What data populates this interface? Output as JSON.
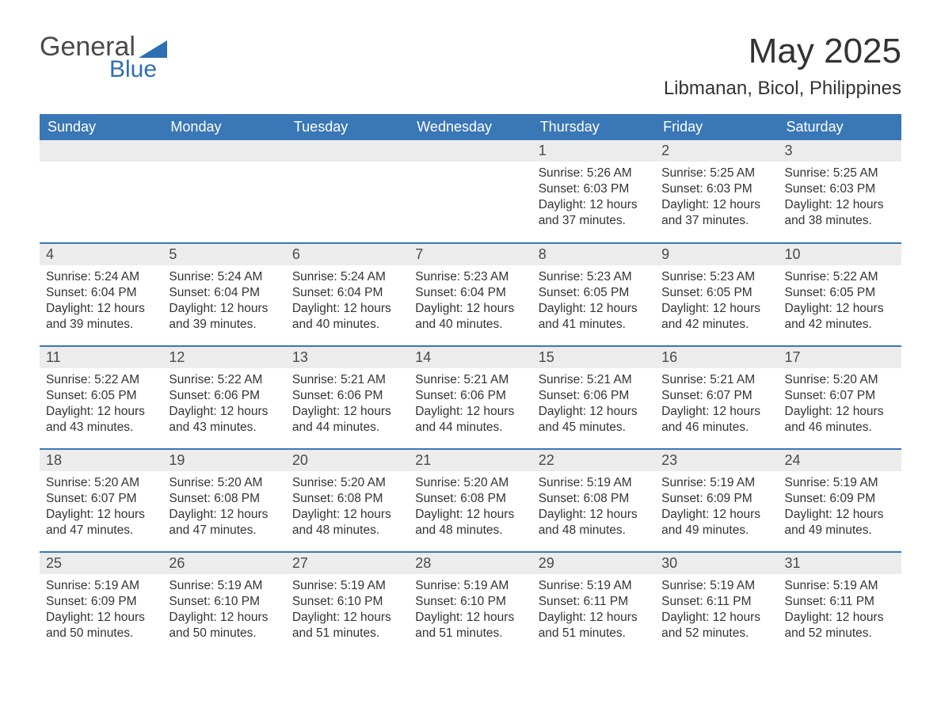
{
  "logo": {
    "text1": "General",
    "text2": "Blue",
    "accent_color": "#2d6fb3"
  },
  "title": "May 2025",
  "location": "Libmanan, Bicol, Philippines",
  "header_bg": "#3a77b6",
  "header_fg": "#ffffff",
  "daynum_bg": "#ececec",
  "border_color": "#3a77b6",
  "weekdays": [
    "Sunday",
    "Monday",
    "Tuesday",
    "Wednesday",
    "Thursday",
    "Friday",
    "Saturday"
  ],
  "weeks": [
    [
      null,
      null,
      null,
      null,
      {
        "d": "1",
        "sr": "5:26 AM",
        "ss": "6:03 PM",
        "dl": "12 hours and 37 minutes."
      },
      {
        "d": "2",
        "sr": "5:25 AM",
        "ss": "6:03 PM",
        "dl": "12 hours and 37 minutes."
      },
      {
        "d": "3",
        "sr": "5:25 AM",
        "ss": "6:03 PM",
        "dl": "12 hours and 38 minutes."
      }
    ],
    [
      {
        "d": "4",
        "sr": "5:24 AM",
        "ss": "6:04 PM",
        "dl": "12 hours and 39 minutes."
      },
      {
        "d": "5",
        "sr": "5:24 AM",
        "ss": "6:04 PM",
        "dl": "12 hours and 39 minutes."
      },
      {
        "d": "6",
        "sr": "5:24 AM",
        "ss": "6:04 PM",
        "dl": "12 hours and 40 minutes."
      },
      {
        "d": "7",
        "sr": "5:23 AM",
        "ss": "6:04 PM",
        "dl": "12 hours and 40 minutes."
      },
      {
        "d": "8",
        "sr": "5:23 AM",
        "ss": "6:05 PM",
        "dl": "12 hours and 41 minutes."
      },
      {
        "d": "9",
        "sr": "5:23 AM",
        "ss": "6:05 PM",
        "dl": "12 hours and 42 minutes."
      },
      {
        "d": "10",
        "sr": "5:22 AM",
        "ss": "6:05 PM",
        "dl": "12 hours and 42 minutes."
      }
    ],
    [
      {
        "d": "11",
        "sr": "5:22 AM",
        "ss": "6:05 PM",
        "dl": "12 hours and 43 minutes."
      },
      {
        "d": "12",
        "sr": "5:22 AM",
        "ss": "6:06 PM",
        "dl": "12 hours and 43 minutes."
      },
      {
        "d": "13",
        "sr": "5:21 AM",
        "ss": "6:06 PM",
        "dl": "12 hours and 44 minutes."
      },
      {
        "d": "14",
        "sr": "5:21 AM",
        "ss": "6:06 PM",
        "dl": "12 hours and 44 minutes."
      },
      {
        "d": "15",
        "sr": "5:21 AM",
        "ss": "6:06 PM",
        "dl": "12 hours and 45 minutes."
      },
      {
        "d": "16",
        "sr": "5:21 AM",
        "ss": "6:07 PM",
        "dl": "12 hours and 46 minutes."
      },
      {
        "d": "17",
        "sr": "5:20 AM",
        "ss": "6:07 PM",
        "dl": "12 hours and 46 minutes."
      }
    ],
    [
      {
        "d": "18",
        "sr": "5:20 AM",
        "ss": "6:07 PM",
        "dl": "12 hours and 47 minutes."
      },
      {
        "d": "19",
        "sr": "5:20 AM",
        "ss": "6:08 PM",
        "dl": "12 hours and 47 minutes."
      },
      {
        "d": "20",
        "sr": "5:20 AM",
        "ss": "6:08 PM",
        "dl": "12 hours and 48 minutes."
      },
      {
        "d": "21",
        "sr": "5:20 AM",
        "ss": "6:08 PM",
        "dl": "12 hours and 48 minutes."
      },
      {
        "d": "22",
        "sr": "5:19 AM",
        "ss": "6:08 PM",
        "dl": "12 hours and 48 minutes."
      },
      {
        "d": "23",
        "sr": "5:19 AM",
        "ss": "6:09 PM",
        "dl": "12 hours and 49 minutes."
      },
      {
        "d": "24",
        "sr": "5:19 AM",
        "ss": "6:09 PM",
        "dl": "12 hours and 49 minutes."
      }
    ],
    [
      {
        "d": "25",
        "sr": "5:19 AM",
        "ss": "6:09 PM",
        "dl": "12 hours and 50 minutes."
      },
      {
        "d": "26",
        "sr": "5:19 AM",
        "ss": "6:10 PM",
        "dl": "12 hours and 50 minutes."
      },
      {
        "d": "27",
        "sr": "5:19 AM",
        "ss": "6:10 PM",
        "dl": "12 hours and 51 minutes."
      },
      {
        "d": "28",
        "sr": "5:19 AM",
        "ss": "6:10 PM",
        "dl": "12 hours and 51 minutes."
      },
      {
        "d": "29",
        "sr": "5:19 AM",
        "ss": "6:11 PM",
        "dl": "12 hours and 51 minutes."
      },
      {
        "d": "30",
        "sr": "5:19 AM",
        "ss": "6:11 PM",
        "dl": "12 hours and 52 minutes."
      },
      {
        "d": "31",
        "sr": "5:19 AM",
        "ss": "6:11 PM",
        "dl": "12 hours and 52 minutes."
      }
    ]
  ],
  "labels": {
    "sunrise": "Sunrise: ",
    "sunset": "Sunset: ",
    "daylight": "Daylight: "
  }
}
